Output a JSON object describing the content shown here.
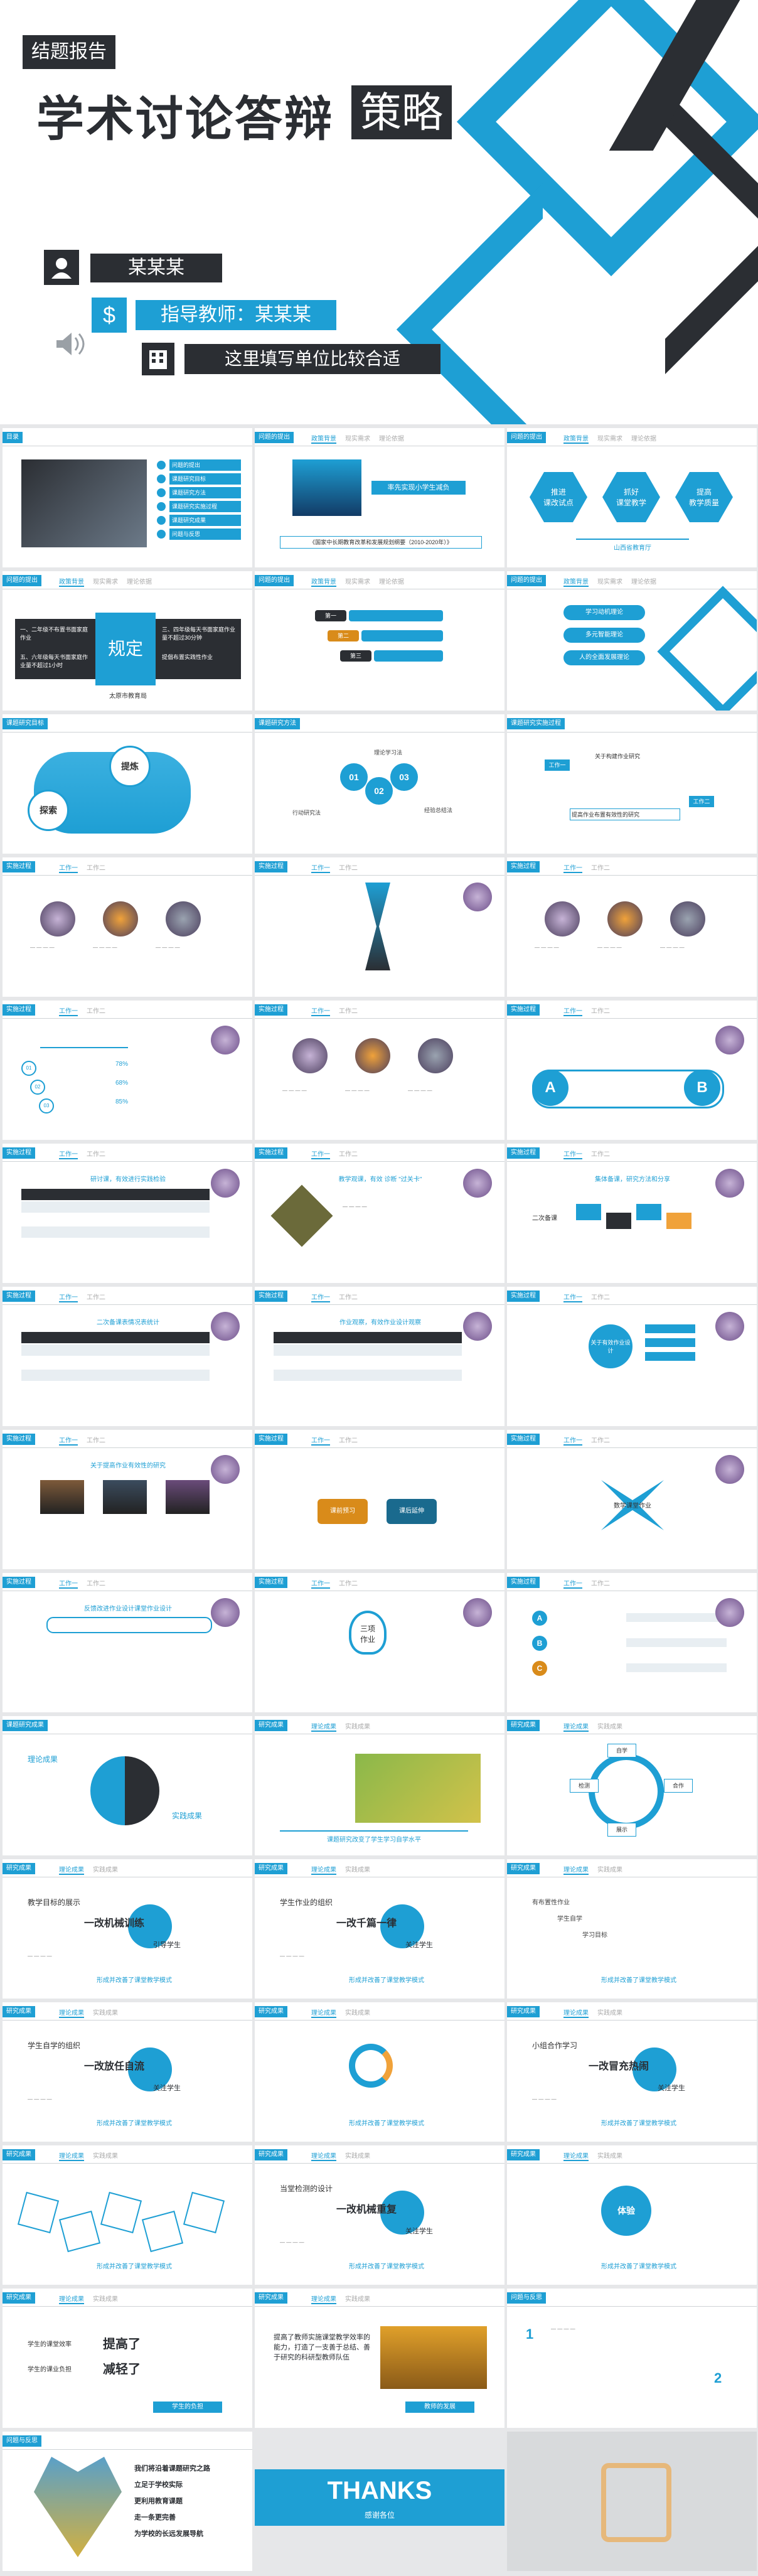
{
  "hero": {
    "badge": "结题报告",
    "title_main": "学术讨论答辩",
    "title_box": "策略",
    "presenter": "某某某",
    "advisor": "指导教师：某某某",
    "unit": "这里填写单位比较合适"
  },
  "slides": {
    "s1": {
      "tag": "目录",
      "items": [
        "问题的提出",
        "课题研究目标",
        "课题研究方法",
        "课题研究实施过程",
        "课题研究成果",
        "问题与反思"
      ]
    },
    "s2": {
      "tag": "问题的提出",
      "tabs": [
        "政策背景",
        "现实需求",
        "理论依据"
      ],
      "banner": "率先实现小学生减负",
      "caption": "《国家中长期教育改革和发展规划纲要（2010-2020年）》"
    },
    "s3": {
      "tag": "问题的提出",
      "tabs": [
        "政策背景",
        "现实需求",
        "理论依据"
      ],
      "hex": [
        "推进\n课改试点",
        "抓好\n课堂教学",
        "提高\n教学质量"
      ],
      "caption": "山西省教育厅"
    },
    "s4": {
      "tag": "问题的提出",
      "tabs": [
        "政策背景",
        "现实需求",
        "理论依据"
      ],
      "center": "规定",
      "left1": "一、二年级不布置书面家庭作业",
      "left2": "五、六年级每天书面家庭作业量不超过1小时",
      "right1": "三、四年级每天书面家庭作业量不超过30分钟",
      "right2": "提倡布置实践性作业",
      "caption": "太原市教育局"
    },
    "s5": {
      "tag": "问题的提出",
      "tabs": [
        "政策背景",
        "现实需求",
        "理论依据"
      ],
      "labels": [
        "第一",
        "第二",
        "第三"
      ]
    },
    "s6": {
      "tag": "问题的提出",
      "tabs": [
        "政策背景",
        "现实需求",
        "理论依据"
      ],
      "items": [
        "学习动机理论",
        "多元智能理论",
        "人的全面发展理论"
      ]
    },
    "s7": {
      "tag": "课题研究目标",
      "words": [
        "探索",
        "提炼"
      ]
    },
    "s8": {
      "tag": "课题研究方法",
      "nums": [
        "01",
        "02",
        "03"
      ],
      "labels": [
        "理论学习法",
        "行动研究法",
        "经验总结法"
      ]
    },
    "s9": {
      "tag": "课题研究实施过程",
      "items": [
        "关于构建作业研究",
        "提高作业布置有效性的研究"
      ],
      "labels": [
        "工作一",
        "工作二"
      ]
    },
    "s10": {
      "tag": "实施过程",
      "tabs": [
        "工作一",
        "工作二"
      ]
    },
    "s11": {
      "tag": "实施过程",
      "tabs": [
        "工作一",
        "工作二"
      ]
    },
    "s12": {
      "tag": "实施过程",
      "tabs": [
        "工作一",
        "工作二"
      ]
    },
    "s13": {
      "tag": "实施过程",
      "tabs": [
        "工作一",
        "工作二"
      ],
      "items": [
        "78%",
        "68%",
        "85%"
      ]
    },
    "s14": {
      "tag": "实施过程",
      "tabs": [
        "工作一",
        "工作二"
      ]
    },
    "s15": {
      "tag": "实施过程",
      "tabs": [
        "工作一",
        "工作二"
      ],
      "a": "A",
      "b": "B"
    },
    "s16": {
      "tag": "实施过程",
      "tabs": [
        "工作一",
        "工作二"
      ],
      "subtitle": "研讨课，有效进行实践检验"
    },
    "s17": {
      "tag": "实施过程",
      "tabs": [
        "工作一",
        "工作二"
      ],
      "subtitle": "教学观课，有效 诊断 \"过关卡\""
    },
    "s18": {
      "tag": "实施过程",
      "tabs": [
        "工作一",
        "工作二"
      ],
      "subtitle": "集体备课，研究方法和分享",
      "label": "二次备课"
    },
    "s19": {
      "tag": "实施过程",
      "tabs": [
        "工作一",
        "工作二"
      ],
      "subtitle": "二次备课表情况表统计"
    },
    "s20": {
      "tag": "实施过程",
      "tabs": [
        "工作一",
        "工作二"
      ],
      "subtitle": "作业观察，有效作业设计观察"
    },
    "s21": {
      "tag": "实施过程",
      "tabs": [
        "工作一",
        "工作二"
      ],
      "center": "关于有效作业设计"
    },
    "s22": {
      "tag": "实施过程",
      "tabs": [
        "工作一",
        "工作二"
      ],
      "subtitle": "关于提高作业有效性的研究"
    },
    "s23": {
      "tag": "实施过程",
      "tabs": [
        "工作一",
        "工作二"
      ],
      "left": "课前预习",
      "right": "课后延伸"
    },
    "s24": {
      "tag": "实施过程",
      "tabs": [
        "工作一",
        "工作二"
      ],
      "center": "数学课堂作业"
    },
    "s25": {
      "tag": "实施过程",
      "tabs": [
        "工作一",
        "工作二"
      ],
      "subtitle": "反馈改进作业设计课堂作业设计"
    },
    "s26": {
      "tag": "实施过程",
      "tabs": [
        "工作一",
        "工作二"
      ],
      "center": "三项\n作业"
    },
    "s27": {
      "tag": "实施过程",
      "tabs": [
        "工作一",
        "工作二"
      ],
      "letters": [
        "A",
        "B",
        "C"
      ]
    },
    "s28": {
      "tag": "课题研究成果",
      "left": "理论成果",
      "right": "实践成果"
    },
    "s29": {
      "tag": "研究成果",
      "tabs": [
        "理论成果",
        "实践成果"
      ],
      "caption": "课题研究改变了学生学习自学水平"
    },
    "s30": {
      "tag": "研究成果",
      "tabs": [
        "理论成果",
        "实践成果"
      ],
      "nodes": [
        "自学",
        "合作",
        "展示",
        "检测"
      ]
    },
    "s31": {
      "tag": "研究成果",
      "tabs": [
        "理论成果",
        "实践成果"
      ],
      "head": "教学目标的展示",
      "big": "一改机械训练",
      "mid": "引导学生",
      "foot": "形成并改善了课堂教学模式"
    },
    "s32": {
      "tag": "研究成果",
      "tabs": [
        "理论成果",
        "实践成果"
      ],
      "head": "学生作业的组织",
      "big": "一改千篇一律",
      "mid": "关注学生",
      "foot": "形成并改善了课堂教学模式"
    },
    "s33": {
      "tag": "研究成果",
      "tabs": [
        "理论成果",
        "实践成果"
      ],
      "items": [
        "有布置性作业",
        "学生自学",
        "学习目标"
      ],
      "foot": "形成并改善了课堂教学模式"
    },
    "s34": {
      "tag": "研究成果",
      "tabs": [
        "理论成果",
        "实践成果"
      ],
      "head": "学生自学的组织",
      "big": "一改放任自流",
      "mid": "关注学生",
      "foot": "形成并改善了课堂教学模式"
    },
    "s35": {
      "tag": "研究成果",
      "tabs": [
        "理论成果",
        "实践成果"
      ],
      "foot": "形成并改善了课堂教学模式"
    },
    "s36": {
      "tag": "研究成果",
      "tabs": [
        "理论成果",
        "实践成果"
      ],
      "head": "小组合作学习",
      "big": "一改冒充热闹",
      "mid": "关注学生",
      "foot": "形成并改善了课堂教学模式"
    },
    "s37": {
      "tag": "研究成果",
      "tabs": [
        "理论成果",
        "实践成果"
      ],
      "foot": "形成并改善了课堂教学模式"
    },
    "s38": {
      "tag": "研究成果",
      "tabs": [
        "理论成果",
        "实践成果"
      ],
      "head": "当堂检测的设计",
      "big": "一改机械重复",
      "mid": "关注学生",
      "foot": "形成并改善了课堂教学模式"
    },
    "s39": {
      "tag": "研究成果",
      "tabs": [
        "理论成果",
        "实践成果"
      ],
      "center": "体验",
      "foot": "形成并改善了课堂教学模式"
    },
    "s40": {
      "tag": "研究成果",
      "tabs": [
        "理论成果",
        "实践成果"
      ],
      "line1": "学生的课堂效率",
      "big1": "提高了",
      "line2": "学生的课业负担",
      "big2": "减轻了",
      "foot": "学生的负担"
    },
    "s41": {
      "tag": "研究成果",
      "tabs": [
        "理论成果",
        "实践成果"
      ],
      "text": "提高了教师实施课堂教学效率的能力，打造了一支善于总结、善于研究的科研型教师队伍",
      "foot": "教师的发展"
    },
    "s42": {
      "tag": "问题与反思",
      "n1": "1",
      "n2": "2"
    },
    "s43": {
      "tag": "问题与反思",
      "lines": [
        "我们将沿着课题研究之路",
        "立足于学校实际",
        "更利用教育课题",
        "走一条更完善",
        "为学校的长远发展导航"
      ]
    },
    "s44": {
      "title": "THANKS",
      "sub": "感谢各位"
    }
  },
  "colors": {
    "accent": "#1e9fd4",
    "dark": "#2b2e33",
    "bg": "#e6e7e9"
  }
}
